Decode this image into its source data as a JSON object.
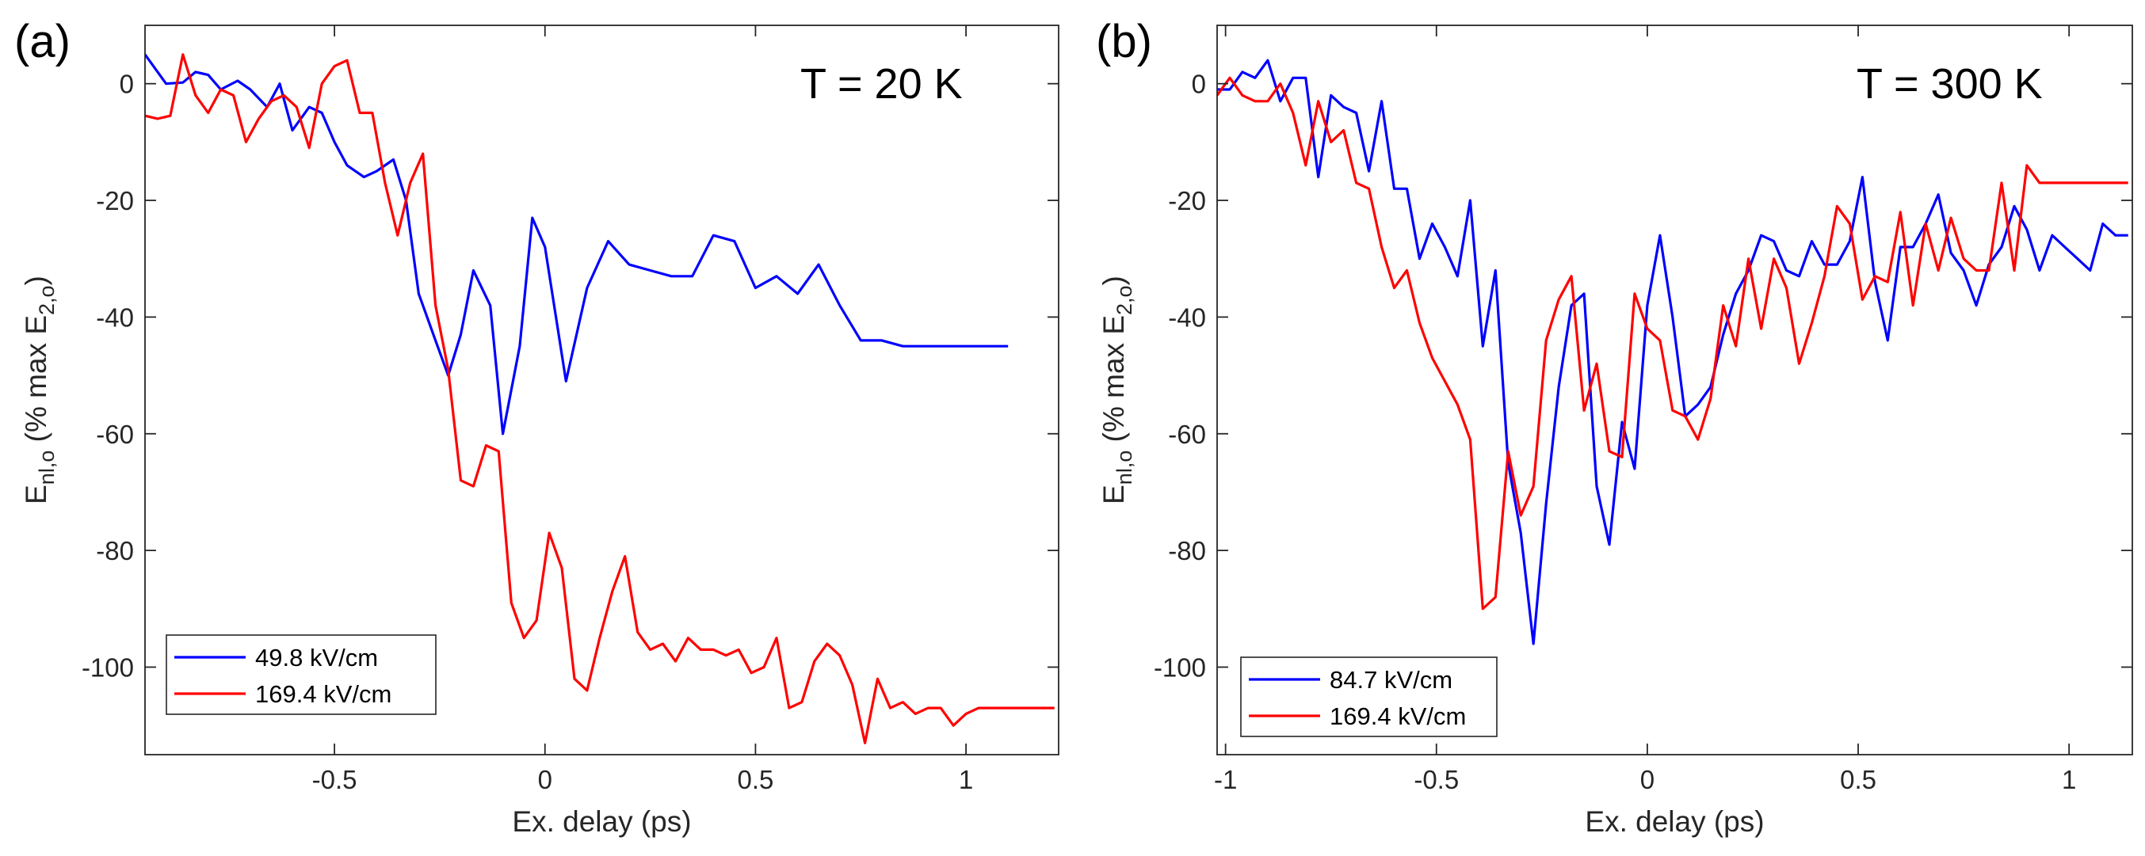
{
  "chart_data": [
    {
      "type": "line",
      "panel_label": "(a)",
      "annotation": "T = 20 K",
      "xlabel": "Ex. delay (ps)",
      "ylabel": {
        "main": "E",
        "sub": "nl,o",
        "rest": " (% max E",
        "sub2": "2,o",
        "end": ")"
      },
      "xlim": [
        -0.95,
        1.22
      ],
      "ylim": [
        -115,
        10
      ],
      "xticks": [
        -0.5,
        0,
        0.5,
        1
      ],
      "xtick_labels": [
        "-0.5",
        "0",
        "0.5",
        "1"
      ],
      "yticks": [
        0,
        -20,
        -40,
        -60,
        -80,
        -100
      ],
      "ytick_labels": [
        "0",
        "-20",
        "-40",
        "-60",
        "-80",
        "-100"
      ],
      "legend_position": "bottom-left",
      "series": [
        {
          "name": "49.8 kV/cm",
          "color": "#0000ff",
          "x": [
            -0.95,
            -0.9,
            -0.86,
            -0.83,
            -0.8,
            -0.77,
            -0.73,
            -0.7,
            -0.66,
            -0.63,
            -0.6,
            -0.56,
            -0.53,
            -0.5,
            -0.47,
            -0.43,
            -0.4,
            -0.36,
            -0.33,
            -0.3,
            -0.26,
            -0.23,
            -0.2,
            -0.17,
            -0.13,
            -0.1,
            -0.06,
            -0.03,
            0,
            0.05,
            0.1,
            0.15,
            0.2,
            0.25,
            0.3,
            0.35,
            0.4,
            0.45,
            0.5,
            0.55,
            0.6,
            0.65,
            0.7,
            0.75,
            0.8,
            0.85,
            0.9,
            0.95,
            1.0,
            1.05,
            1.1
          ],
          "values": [
            5,
            0,
            0.2,
            2,
            1.5,
            -1,
            0.5,
            -1,
            -4,
            0,
            -8,
            -4,
            -5,
            -10,
            -14,
            -16,
            -15,
            -13,
            -20,
            -36,
            -44,
            -50,
            -43,
            -32,
            -38,
            -60,
            -45,
            -23,
            -28,
            -51,
            -35,
            -27,
            -31,
            -32,
            -33,
            -33,
            -26,
            -27,
            -35,
            -33,
            -36,
            -31,
            -38,
            -44,
            -44,
            -45,
            -45,
            -45,
            -45,
            -45,
            -45
          ]
        },
        {
          "name": "169.4 kV/cm",
          "color": "#ff0000",
          "x": [
            -0.95,
            -0.92,
            -0.89,
            -0.86,
            -0.83,
            -0.8,
            -0.77,
            -0.74,
            -0.71,
            -0.68,
            -0.65,
            -0.62,
            -0.59,
            -0.56,
            -0.53,
            -0.5,
            -0.47,
            -0.44,
            -0.41,
            -0.38,
            -0.35,
            -0.32,
            -0.29,
            -0.26,
            -0.23,
            -0.2,
            -0.17,
            -0.14,
            -0.11,
            -0.08,
            -0.05,
            -0.02,
            0.01,
            0.04,
            0.07,
            0.1,
            0.13,
            0.16,
            0.19,
            0.22,
            0.25,
            0.28,
            0.31,
            0.34,
            0.37,
            0.4,
            0.43,
            0.46,
            0.49,
            0.52,
            0.55,
            0.58,
            0.61,
            0.64,
            0.67,
            0.7,
            0.73,
            0.76,
            0.79,
            0.82,
            0.85,
            0.88,
            0.91,
            0.94,
            0.97,
            1.0,
            1.03,
            1.06,
            1.09,
            1.12,
            1.15,
            1.18,
            1.21
          ],
          "values": [
            -5.5,
            -6,
            -5.5,
            5,
            -2,
            -5,
            -1,
            -2,
            -10,
            -6,
            -3,
            -2,
            -4,
            -11,
            0,
            3,
            4,
            -5,
            -5,
            -17,
            -26,
            -17,
            -12,
            -38,
            -49,
            -68,
            -69,
            -62,
            -63,
            -89,
            -95,
            -92,
            -77,
            -83,
            -102,
            -104,
            -95,
            -87,
            -81,
            -94,
            -97,
            -96,
            -99,
            -95,
            -97,
            -97,
            -98,
            -97,
            -101,
            -100,
            -95,
            -107,
            -106,
            -99,
            -96,
            -98,
            -103,
            -113,
            -102,
            -107,
            -106,
            -108,
            -107,
            -107,
            -110,
            -108,
            -107,
            -107,
            -107,
            -107,
            -107,
            -107,
            -107
          ]
        }
      ]
    },
    {
      "type": "line",
      "panel_label": "(b)",
      "annotation": "T = 300 K",
      "xlabel": "Ex. delay (ps)",
      "ylabel": {
        "main": "E",
        "sub": "nl,o",
        "rest": " (% max E",
        "sub2": "2,o",
        "end": ")"
      },
      "xlim": [
        -1.02,
        1.15
      ],
      "ylim": [
        -115,
        10
      ],
      "xticks": [
        -1,
        -0.5,
        0,
        0.5,
        1
      ],
      "xtick_labels": [
        "-1",
        "-0.5",
        "0",
        "0.5",
        "1"
      ],
      "yticks": [
        0,
        -20,
        -40,
        -60,
        -80,
        -100
      ],
      "ytick_labels": [
        "0",
        "-20",
        "-40",
        "-60",
        "-80",
        "-100"
      ],
      "legend_position": "bottom-left",
      "series": [
        {
          "name": "84.7 kV/cm",
          "color": "#0000ff",
          "x": [
            -1.02,
            -0.99,
            -0.96,
            -0.93,
            -0.9,
            -0.87,
            -0.84,
            -0.81,
            -0.78,
            -0.75,
            -0.72,
            -0.69,
            -0.66,
            -0.63,
            -0.6,
            -0.57,
            -0.54,
            -0.51,
            -0.48,
            -0.45,
            -0.42,
            -0.39,
            -0.36,
            -0.33,
            -0.3,
            -0.27,
            -0.24,
            -0.21,
            -0.18,
            -0.15,
            -0.12,
            -0.09,
            -0.06,
            -0.03,
            0,
            0.03,
            0.06,
            0.09,
            0.12,
            0.15,
            0.18,
            0.21,
            0.24,
            0.27,
            0.3,
            0.33,
            0.36,
            0.39,
            0.42,
            0.45,
            0.48,
            0.51,
            0.54,
            0.57,
            0.6,
            0.63,
            0.66,
            0.69,
            0.72,
            0.75,
            0.78,
            0.81,
            0.84,
            0.87,
            0.9,
            0.93,
            0.96,
            0.99,
            1.02,
            1.05,
            1.08,
            1.11,
            1.14
          ],
          "values": [
            -1,
            -1,
            2,
            1,
            4,
            -3,
            1,
            1,
            -16,
            -2,
            -4,
            -5,
            -15,
            -3,
            -18,
            -18,
            -30,
            -24,
            -28,
            -33,
            -20,
            -45,
            -32,
            -65,
            -77,
            -96,
            -72,
            -52,
            -38,
            -36,
            -69,
            -79,
            -58,
            -66,
            -38,
            -26,
            -40,
            -57,
            -55,
            -52,
            -43,
            -36,
            -32,
            -26,
            -27,
            -32,
            -33,
            -27,
            -31,
            -31,
            -27,
            -16,
            -34,
            -44,
            -28,
            -28,
            -24,
            -19,
            -29,
            -32,
            -38,
            -31,
            -28,
            -21,
            -25,
            -32,
            -26,
            -28,
            -30,
            -32,
            -24,
            -26,
            -26
          ]
        },
        {
          "name": "169.4 kV/cm",
          "color": "#ff0000",
          "x": [
            -1.02,
            -0.99,
            -0.96,
            -0.93,
            -0.9,
            -0.87,
            -0.84,
            -0.81,
            -0.78,
            -0.75,
            -0.72,
            -0.69,
            -0.66,
            -0.63,
            -0.6,
            -0.57,
            -0.54,
            -0.51,
            -0.48,
            -0.45,
            -0.42,
            -0.39,
            -0.36,
            -0.33,
            -0.3,
            -0.27,
            -0.24,
            -0.21,
            -0.18,
            -0.15,
            -0.12,
            -0.09,
            -0.06,
            -0.03,
            0,
            0.03,
            0.06,
            0.09,
            0.12,
            0.15,
            0.18,
            0.21,
            0.24,
            0.27,
            0.3,
            0.33,
            0.36,
            0.39,
            0.42,
            0.45,
            0.48,
            0.51,
            0.54,
            0.57,
            0.6,
            0.63,
            0.66,
            0.69,
            0.72,
            0.75,
            0.78,
            0.81,
            0.84,
            0.87,
            0.9,
            0.93,
            0.96,
            0.99,
            1.02,
            1.05,
            1.08,
            1.11,
            1.14
          ],
          "values": [
            -2,
            1,
            -2,
            -3,
            -3,
            0,
            -5,
            -14,
            -3,
            -10,
            -8,
            -17,
            -18,
            -28,
            -35,
            -32,
            -41,
            -47,
            -51,
            -55,
            -61,
            -90,
            -88,
            -63,
            -74,
            -69,
            -44,
            -37,
            -33,
            -56,
            -48,
            -63,
            -64,
            -36,
            -42,
            -44,
            -56,
            -57,
            -61,
            -54,
            -38,
            -45,
            -30,
            -42,
            -30,
            -35,
            -48,
            -41,
            -33,
            -21,
            -24,
            -37,
            -33,
            -34,
            -22,
            -38,
            -24,
            -32,
            -23,
            -30,
            -32,
            -32,
            -17,
            -32,
            -14,
            -17,
            -17,
            -17,
            -17,
            -17,
            -17,
            -17,
            -17
          ]
        }
      ]
    }
  ]
}
